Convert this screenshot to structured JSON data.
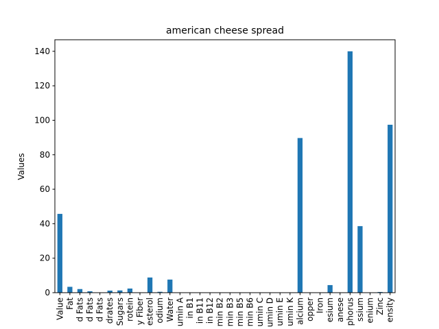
{
  "chart_data": {
    "type": "bar",
    "title": "american cheese spread",
    "xlabel": "",
    "ylabel": "Values",
    "ylim": [
      0,
      146.7
    ],
    "yticks": [
      0,
      20,
      40,
      60,
      80,
      100,
      120,
      140
    ],
    "grid": false,
    "bar_color": "#1f77b4",
    "categories": [
      "Value",
      "Fat",
      "d Fats",
      "d Fats",
      "d Fats",
      "drates",
      "Sugars",
      "rotein",
      "y Fiber",
      "esterol",
      "odium",
      "Water",
      "umin A",
      "in B1",
      "in B11",
      "in B12",
      "min B2",
      "min B3",
      "min B5",
      "min B6",
      "umin C",
      "umin D",
      "umin E",
      "umin K",
      "alcium",
      "opper",
      "Iron",
      "esium",
      "anese",
      "phorus",
      "ssium",
      "enium",
      "Zinc",
      "ensity"
    ],
    "values": [
      45.7,
      3.4,
      2.1,
      0.8,
      0.1,
      1.2,
      1.3,
      2.4,
      0,
      8.8,
      0.5,
      7.6,
      0,
      0,
      0,
      0,
      0,
      0,
      0,
      0,
      0,
      0,
      0,
      0,
      89.7,
      0,
      0,
      4.4,
      0,
      140.0,
      38.6,
      0,
      0.4,
      97.4
    ]
  }
}
